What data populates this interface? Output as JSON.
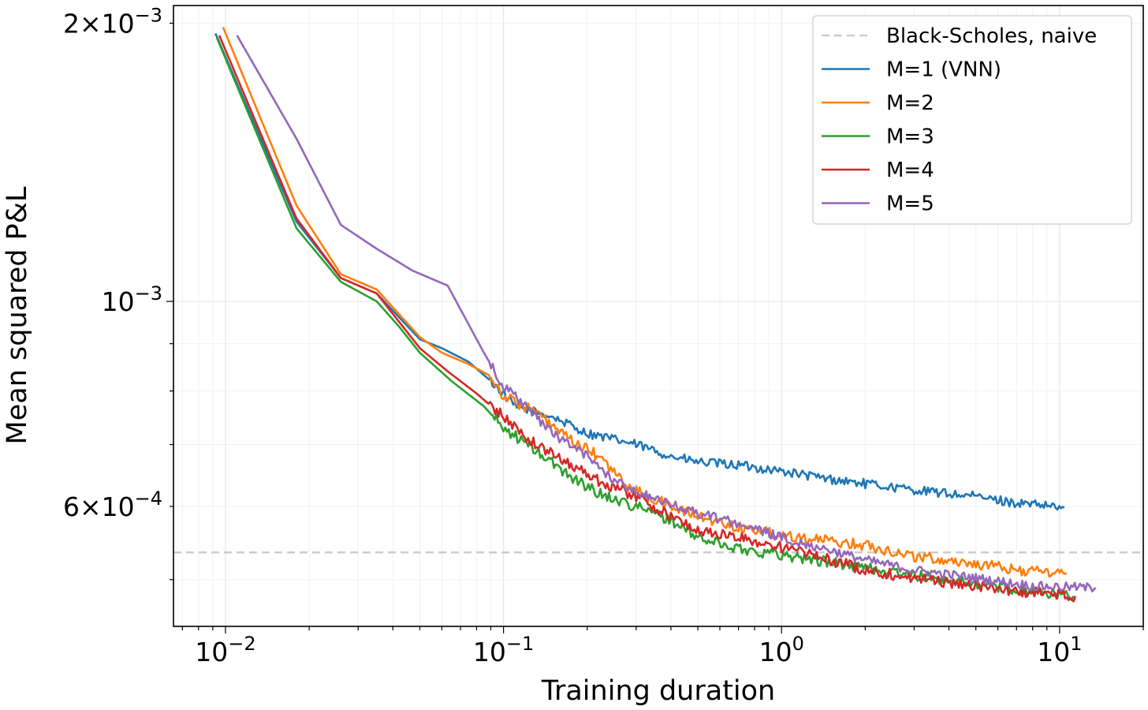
{
  "chart_data": {
    "type": "line",
    "title": "",
    "xlabel": "Training duration",
    "ylabel": "Mean squared P&L",
    "xscale": "log",
    "yscale": "log",
    "xlim": [
      0.0065,
      20
    ],
    "ylim": [
      0.000445,
      0.00209
    ],
    "grid": true,
    "legend_position": "upper right",
    "x_ticks": [
      {
        "value": 0.01,
        "base": "10",
        "exp": "−2"
      },
      {
        "value": 0.1,
        "base": "10",
        "exp": "−1"
      },
      {
        "value": 1,
        "base": "10",
        "exp": "0"
      },
      {
        "value": 10,
        "base": "10",
        "exp": "1"
      }
    ],
    "y_ticks": [
      {
        "value": 0.002,
        "coef": "2",
        "times": "×",
        "base": "10",
        "exp": "−3"
      },
      {
        "value": 0.001,
        "coef": "",
        "times": "",
        "base": "10",
        "exp": "−3"
      },
      {
        "value": 0.0006,
        "coef": "6",
        "times": "×",
        "base": "10",
        "exp": "−4"
      }
    ],
    "reference_line": {
      "name": "Black-Scholes, naive",
      "y": 0.000535,
      "color": "#cccccc",
      "style": "dashed"
    },
    "series": [
      {
        "name": "M=1 (VNN)",
        "color": "#1f77b4",
        "noise": 0.005,
        "x": [
          0.0092,
          0.018,
          0.026,
          0.035,
          0.05,
          0.06,
          0.075,
          0.09,
          0.11,
          0.15,
          0.2,
          0.3,
          0.4,
          0.5,
          0.7,
          1.0,
          1.5,
          2.0,
          3.0,
          5.0,
          7.0,
          10.4
        ],
        "y": [
          0.00195,
          0.00122,
          0.00106,
          0.00102,
          0.00091,
          0.00089,
          0.00086,
          0.00082,
          0.00077,
          0.00075,
          0.00072,
          0.0007,
          0.00068,
          0.00067,
          0.000665,
          0.000655,
          0.000642,
          0.000635,
          0.000625,
          0.000615,
          0.000605,
          0.000598
        ]
      },
      {
        "name": "M=2",
        "color": "#ff7f0e",
        "noise": 0.006,
        "x": [
          0.0098,
          0.018,
          0.026,
          0.035,
          0.05,
          0.06,
          0.075,
          0.09,
          0.1,
          0.13,
          0.17,
          0.22,
          0.28,
          0.35,
          0.5,
          0.7,
          1.0,
          1.5,
          2.0,
          3.0,
          5.0,
          7.0,
          10.6
        ],
        "y": [
          0.00198,
          0.00127,
          0.00107,
          0.00103,
          0.000915,
          0.00088,
          0.000855,
          0.00083,
          0.00079,
          0.00076,
          0.00071,
          0.00068,
          0.00063,
          0.00061,
          0.000585,
          0.00057,
          0.00056,
          0.00055,
          0.000545,
          0.00053,
          0.00052,
          0.000512,
          0.000508
        ]
      },
      {
        "name": "M=3",
        "color": "#2ca02c",
        "noise": 0.006,
        "x": [
          0.0093,
          0.018,
          0.026,
          0.035,
          0.042,
          0.05,
          0.065,
          0.085,
          0.1,
          0.13,
          0.17,
          0.22,
          0.3,
          0.4,
          0.5,
          0.7,
          1.0,
          1.5,
          2.0,
          3.0,
          5.0,
          8.0,
          11.2
        ],
        "y": [
          0.00193,
          0.0012,
          0.00105,
          0.001,
          0.00094,
          0.00088,
          0.00082,
          0.00077,
          0.00073,
          0.00069,
          0.00065,
          0.00062,
          0.0006,
          0.00058,
          0.000555,
          0.00054,
          0.000532,
          0.000522,
          0.000515,
          0.000505,
          0.000495,
          0.000485,
          0.00048
        ]
      },
      {
        "name": "M=4",
        "color": "#d62728",
        "noise": 0.006,
        "x": [
          0.0095,
          0.018,
          0.026,
          0.035,
          0.05,
          0.063,
          0.08,
          0.1,
          0.13,
          0.17,
          0.22,
          0.3,
          0.4,
          0.5,
          0.7,
          1.0,
          1.5,
          2.0,
          3.0,
          5.0,
          8.0,
          11.4
        ],
        "y": [
          0.00194,
          0.00123,
          0.00106,
          0.00102,
          0.00089,
          0.00084,
          0.000795,
          0.00075,
          0.0007,
          0.00067,
          0.00064,
          0.000615,
          0.000585,
          0.000565,
          0.000555,
          0.000542,
          0.000525,
          0.000512,
          0.000502,
          0.000492,
          0.000484,
          0.00048
        ]
      },
      {
        "name": "M=5",
        "color": "#9467bd",
        "noise": 0.005,
        "x": [
          0.011,
          0.018,
          0.026,
          0.035,
          0.047,
          0.063,
          0.085,
          0.1,
          0.12,
          0.15,
          0.2,
          0.25,
          0.35,
          0.5,
          0.7,
          1.0,
          1.5,
          2.0,
          3.0,
          5.0,
          8.0,
          13.5
        ],
        "y": [
          0.00194,
          0.0015,
          0.00121,
          0.00114,
          0.00108,
          0.00104,
          0.00088,
          0.00081,
          0.00077,
          0.00072,
          0.00068,
          0.00064,
          0.00061,
          0.00059,
          0.000575,
          0.000555,
          0.000538,
          0.000525,
          0.000512,
          0.000502,
          0.000492,
          0.00049
        ]
      }
    ]
  }
}
